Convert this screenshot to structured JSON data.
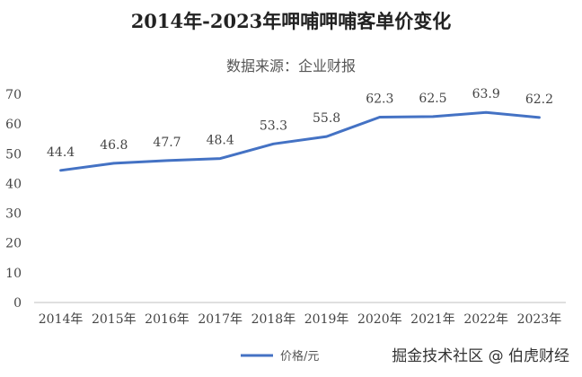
{
  "chart_data": {
    "type": "line",
    "title": "2014年-2023年呷哺呷哺客单价变化",
    "subtitle": "数据来源：企业财报",
    "categories": [
      "2014年",
      "2015年",
      "2016年",
      "2017年",
      "2018年",
      "2019年",
      "2020年",
      "2021年",
      "2022年",
      "2023年"
    ],
    "series": [
      {
        "name": "价格/元",
        "values": [
          44.4,
          46.8,
          47.7,
          48.4,
          53.3,
          55.8,
          62.3,
          62.5,
          63.9,
          62.2
        ],
        "color": "#4472C4"
      }
    ],
    "ylim": [
      0,
      70
    ],
    "yticks": [
      0,
      10,
      20,
      30,
      40,
      50,
      60,
      70
    ],
    "grid": false,
    "legend_position": "bottom"
  },
  "watermark": "掘金技术社区 @ 伯虎财经"
}
